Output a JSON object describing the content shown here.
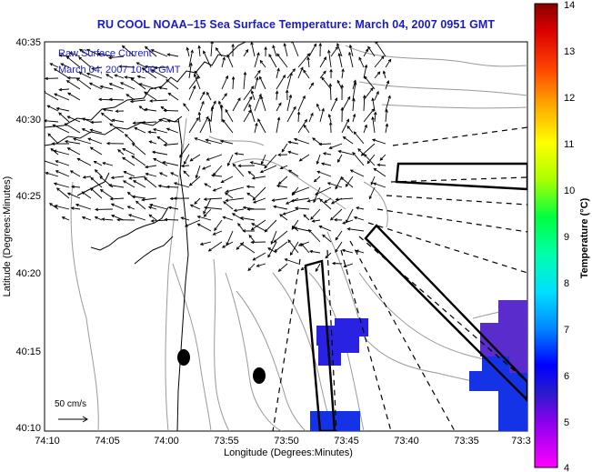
{
  "map": {
    "title": "RU COOL  NOAA–15  Sea Surface Temperature:  March 04, 2007 0951 GMT",
    "legend_line1": "Raw Surface Current",
    "legend_line2": "March 04, 2007 10:00 GMT",
    "scale_label": "50 cm/s",
    "xlabel": "Longitude (Degrees:Minutes)",
    "ylabel": "Latitude (Degrees:Minutes)",
    "x_ticks": [
      "74:10",
      "74:05",
      "74:00",
      "73:55",
      "73:50",
      "73:45",
      "73:40",
      "73:35",
      "73:3"
    ],
    "y_ticks": [
      "40:35",
      "40:30",
      "40:25",
      "40:20",
      "40:15",
      "40:10"
    ],
    "colors": {
      "title": "#1a1ac8",
      "sst_blue": "#1432e6",
      "sst_purple": "#5a2ccc",
      "coast": "#000000",
      "bathymetry": "#9a9a9a"
    }
  },
  "colorbar": {
    "label": "Temperature (°C)",
    "ticks": [
      "14",
      "13",
      "12",
      "11",
      "10",
      "9",
      "8",
      "7",
      "6",
      "5",
      "4"
    ],
    "min": 4,
    "max": 14
  }
}
